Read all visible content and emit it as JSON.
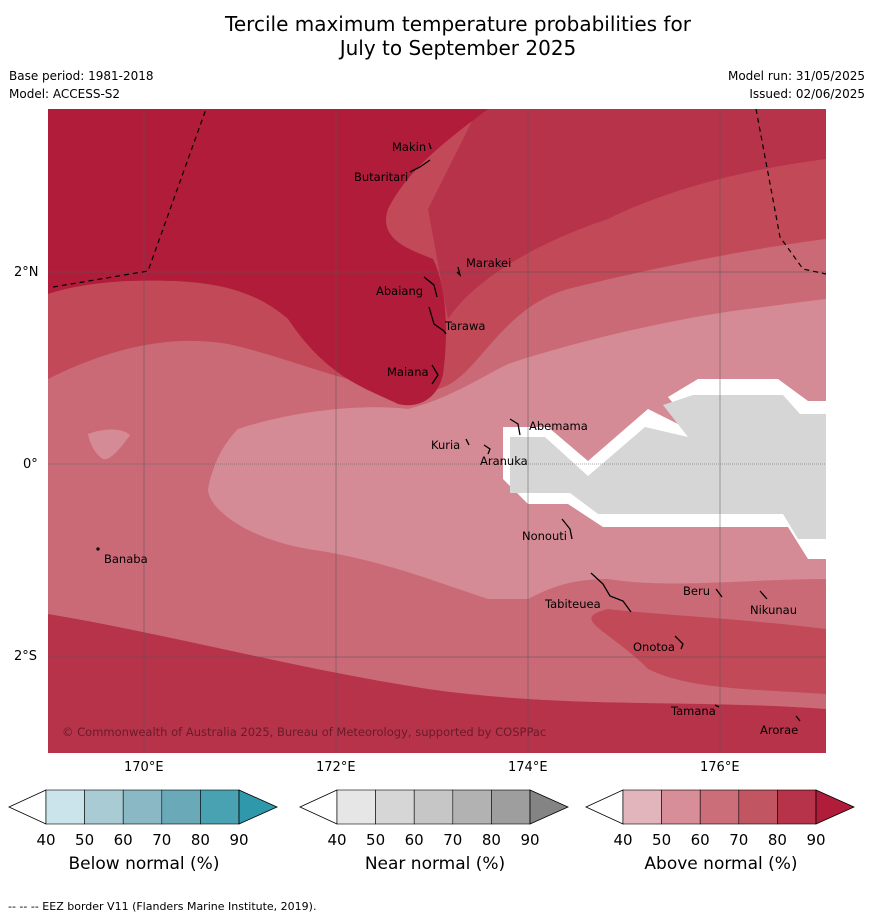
{
  "title_line1": "Tercile maximum temperature probabilities for",
  "title_line2": "July to September 2025",
  "meta": {
    "base_period": "Base period: 1981-2018",
    "model": "Model: ACCESS-S2",
    "model_run": "Model run: 31/05/2025",
    "issued": "Issued: 02/06/2025"
  },
  "axes": {
    "lat_labels": [
      "2°N",
      "0°",
      "2°S"
    ],
    "lon_labels": [
      "170°E",
      "172°E",
      "174°E",
      "176°E"
    ]
  },
  "copyright": "© Commonwealth of Australia 2025, Bureau of Meteorology, supported by COSPPac",
  "islands": [
    "Makin",
    "Butaritari",
    "Marakei",
    "Abaiang",
    "Tarawa",
    "Maiana",
    "Abemama",
    "Kuria",
    "Aranuka",
    "Banaba",
    "Nonouti",
    "Beru",
    "Tabiteuea",
    "Nikunau",
    "Onotoa",
    "Tamana",
    "Arorae"
  ],
  "colorbars": [
    {
      "title": "Below normal (%)",
      "ticks": [
        "40",
        "50",
        "60",
        "70",
        "80",
        "90"
      ],
      "colors": [
        "#ffffff",
        "#cbe3ea",
        "#a8cbd4",
        "#8ab8c4",
        "#6aa9b8",
        "#48a2b2",
        "#2f98ab"
      ]
    },
    {
      "title": "Near normal (%)",
      "ticks": [
        "40",
        "50",
        "60",
        "70",
        "80",
        "90"
      ],
      "colors": [
        "#ffffff",
        "#e6e6e6",
        "#d6d6d6",
        "#c6c6c6",
        "#b2b2b2",
        "#9e9e9e",
        "#848484"
      ]
    },
    {
      "title": "Above normal (%)",
      "ticks": [
        "40",
        "50",
        "60",
        "70",
        "80",
        "90"
      ],
      "colors": [
        "#ffffff",
        "#e2b4bc",
        "#d78e98",
        "#cb6e7a",
        "#c25562",
        "#b7334a",
        "#b01c3a"
      ]
    }
  ],
  "footer": "--  --  -- EEZ border V11 (Flanders Marine Institute, 2019)."
}
